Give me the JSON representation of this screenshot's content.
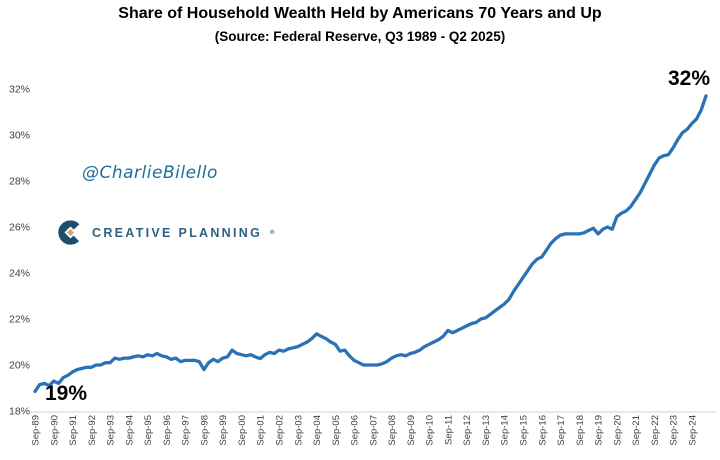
{
  "header": {
    "title": "Share of Household Wealth Held by Americans 70 Years and Up",
    "subtitle": "(Source: Federal Reserve, Q3 1989 - Q2 2025)"
  },
  "watermarks": {
    "handle": "@CharlieBilello",
    "logo_text": "CREATIVE PLANNING",
    "logo_mark": "®"
  },
  "colors": {
    "line": "#2a72b5",
    "baseline": "#d9d9d9",
    "tick_text": "#3f3f3f",
    "annotation": "#000000",
    "handle_teal": "#1e6f96",
    "logo_navy": "#1d4e70",
    "logo_wordmark": "#2d627f",
    "logo_gold": "#c9a96a"
  },
  "chart_data": {
    "type": "line",
    "title": "Share of Household Wealth Held by Americans 70 Years and Up",
    "xlabel": "",
    "ylabel": "",
    "unit": "%",
    "frequency": "quarterly",
    "x_start": "1989-Q3",
    "x_end": "2025-Q2",
    "ylim": [
      18,
      32
    ],
    "grid": "off",
    "legend": "none",
    "y_ticks": [
      18,
      20,
      22,
      24,
      26,
      28,
      30,
      32
    ],
    "x_tick_labels": [
      "Sep-89",
      "Sep-90",
      "Sep-91",
      "Sep-92",
      "Sep-93",
      "Sep-94",
      "Sep-95",
      "Sep-96",
      "Sep-97",
      "Sep-98",
      "Sep-99",
      "Sep-00",
      "Sep-01",
      "Sep-02",
      "Sep-03",
      "Sep-04",
      "Sep-05",
      "Sep-06",
      "Sep-07",
      "Sep-08",
      "Sep-09",
      "Sep-10",
      "Sep-11",
      "Sep-12",
      "Sep-13",
      "Sep-14",
      "Sep-15",
      "Sep-16",
      "Sep-17",
      "Sep-18",
      "Sep-19",
      "Sep-20",
      "Sep-21",
      "Sep-22",
      "Sep-23",
      "Sep-24"
    ],
    "x_tick_every_n_points": 4,
    "values": [
      18.85,
      19.15,
      19.2,
      19.1,
      19.3,
      19.2,
      19.45,
      19.55,
      19.7,
      19.8,
      19.85,
      19.9,
      19.9,
      20.0,
      20.0,
      20.1,
      20.1,
      20.3,
      20.25,
      20.3,
      20.3,
      20.35,
      20.4,
      20.35,
      20.45,
      20.4,
      20.5,
      20.4,
      20.35,
      20.25,
      20.3,
      20.15,
      20.2,
      20.2,
      20.2,
      20.15,
      19.8,
      20.1,
      20.25,
      20.15,
      20.3,
      20.35,
      20.65,
      20.5,
      20.45,
      20.4,
      20.45,
      20.35,
      20.28,
      20.45,
      20.55,
      20.5,
      20.65,
      20.6,
      20.7,
      20.75,
      20.8,
      20.9,
      21.0,
      21.15,
      21.35,
      21.25,
      21.15,
      21.0,
      20.9,
      20.6,
      20.65,
      20.4,
      20.2,
      20.1,
      20.0,
      20.0,
      20.0,
      20.0,
      20.05,
      20.15,
      20.3,
      20.4,
      20.45,
      20.4,
      20.5,
      20.55,
      20.65,
      20.8,
      20.9,
      21.0,
      21.1,
      21.25,
      21.5,
      21.4,
      21.5,
      21.6,
      21.7,
      21.8,
      21.85,
      22.0,
      22.05,
      22.2,
      22.35,
      22.5,
      22.65,
      22.85,
      23.2,
      23.5,
      23.8,
      24.1,
      24.4,
      24.6,
      24.7,
      25.0,
      25.3,
      25.5,
      25.65,
      25.7,
      25.7,
      25.7,
      25.7,
      25.75,
      25.85,
      25.95,
      25.7,
      25.9,
      26.0,
      25.9,
      26.45,
      26.6,
      26.7,
      26.9,
      27.2,
      27.5,
      27.9,
      28.3,
      28.7,
      29.0,
      29.1,
      29.15,
      29.45,
      29.8,
      30.1,
      30.25,
      30.5,
      30.7,
      31.1,
      31.7
    ],
    "annotations": [
      {
        "text": "19%",
        "position": "first"
      },
      {
        "text": "32%",
        "position": "last"
      }
    ]
  }
}
